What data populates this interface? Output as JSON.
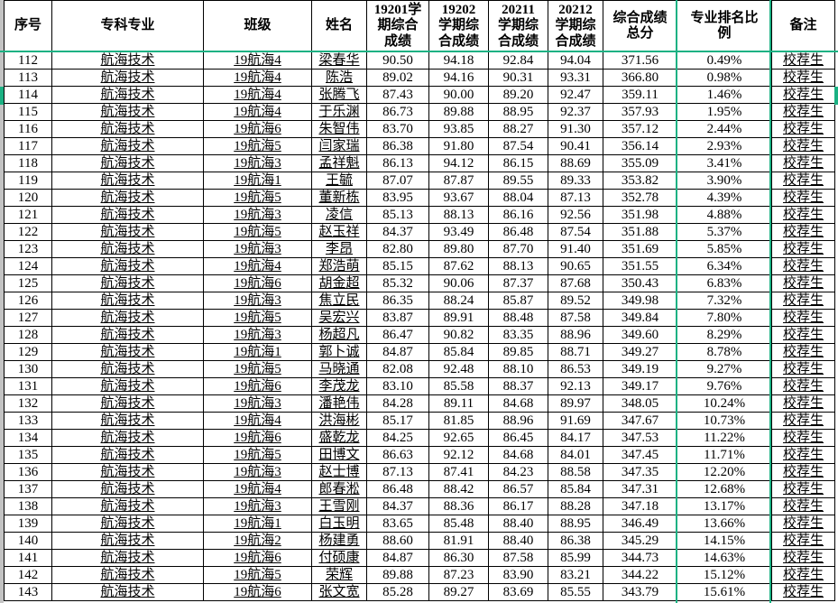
{
  "meta": {
    "accent_green": "#1bb183",
    "edge_gray": "#c3c3c3",
    "remark_value": "校荐生"
  },
  "table": {
    "columns": [
      {
        "id": "index",
        "label": "序号"
      },
      {
        "id": "major",
        "label": "专科专业"
      },
      {
        "id": "class",
        "label": "班级"
      },
      {
        "id": "name",
        "label": "姓名"
      },
      {
        "id": "s19201",
        "label": "19201学\n期综合\n成绩"
      },
      {
        "id": "s19202",
        "label": "19202\n学期综\n合成绩"
      },
      {
        "id": "s20211",
        "label": "20211\n学期综\n合成绩"
      },
      {
        "id": "s20212",
        "label": "20212\n学期综\n合成绩"
      },
      {
        "id": "total",
        "label": "综合成绩\n总分"
      },
      {
        "id": "ratio",
        "label": "专业排名比\n例"
      },
      {
        "id": "remark",
        "label": "备注"
      }
    ],
    "rows": [
      [
        "112",
        "航海技术",
        "19航海4",
        "梁春华",
        "90.50",
        "94.18",
        "92.84",
        "94.04",
        "371.56",
        "0.49%",
        "校荐生"
      ],
      [
        "113",
        "航海技术",
        "19航海4",
        "陈浩",
        "89.02",
        "94.16",
        "90.31",
        "93.31",
        "366.80",
        "0.98%",
        "校荐生"
      ],
      [
        "114",
        "航海技术",
        "19航海4",
        "张腾飞",
        "87.43",
        "90.00",
        "89.20",
        "92.47",
        "359.11",
        "1.46%",
        "校荐生"
      ],
      [
        "115",
        "航海技术",
        "19航海4",
        "于乐渊",
        "86.73",
        "89.88",
        "88.95",
        "92.37",
        "357.93",
        "1.95%",
        "校荐生"
      ],
      [
        "116",
        "航海技术",
        "19航海6",
        "朱智伟",
        "83.70",
        "93.85",
        "88.27",
        "91.30",
        "357.12",
        "2.44%",
        "校荐生"
      ],
      [
        "117",
        "航海技术",
        "19航海5",
        "闫家瑞",
        "86.38",
        "91.80",
        "87.54",
        "90.41",
        "356.14",
        "2.93%",
        "校荐生"
      ],
      [
        "118",
        "航海技术",
        "19航海3",
        "孟祥魁",
        "86.13",
        "94.12",
        "86.15",
        "88.69",
        "355.09",
        "3.41%",
        "校荐生"
      ],
      [
        "119",
        "航海技术",
        "19航海1",
        "王毓",
        "87.07",
        "87.87",
        "89.55",
        "89.33",
        "353.82",
        "3.90%",
        "校荐生"
      ],
      [
        "120",
        "航海技术",
        "19航海5",
        "董新栋",
        "83.95",
        "93.67",
        "88.04",
        "87.13",
        "352.78",
        "4.39%",
        "校荐生"
      ],
      [
        "121",
        "航海技术",
        "19航海3",
        "凌信",
        "85.13",
        "88.13",
        "86.16",
        "92.56",
        "351.98",
        "4.88%",
        "校荐生"
      ],
      [
        "122",
        "航海技术",
        "19航海5",
        "赵玉祥",
        "84.37",
        "93.49",
        "86.48",
        "87.54",
        "351.88",
        "5.37%",
        "校荐生"
      ],
      [
        "123",
        "航海技术",
        "19航海3",
        "李昂",
        "82.80",
        "89.80",
        "87.70",
        "91.40",
        "351.69",
        "5.85%",
        "校荐生"
      ],
      [
        "124",
        "航海技术",
        "19航海4",
        "郑浩萌",
        "85.15",
        "87.62",
        "88.13",
        "90.65",
        "351.55",
        "6.34%",
        "校荐生"
      ],
      [
        "125",
        "航海技术",
        "19航海6",
        "胡金超",
        "85.32",
        "90.06",
        "87.37",
        "87.68",
        "350.43",
        "6.83%",
        "校荐生"
      ],
      [
        "126",
        "航海技术",
        "19航海3",
        "焦立民",
        "86.35",
        "88.24",
        "85.87",
        "89.52",
        "349.98",
        "7.32%",
        "校荐生"
      ],
      [
        "127",
        "航海技术",
        "19航海5",
        "吴宏兴",
        "83.87",
        "89.91",
        "88.48",
        "87.58",
        "349.84",
        "7.80%",
        "校荐生"
      ],
      [
        "128",
        "航海技术",
        "19航海3",
        "杨超凡",
        "86.47",
        "90.82",
        "83.35",
        "88.96",
        "349.60",
        "8.29%",
        "校荐生"
      ],
      [
        "129",
        "航海技术",
        "19航海1",
        "郭卜诚",
        "84.87",
        "85.84",
        "89.85",
        "88.71",
        "349.27",
        "8.78%",
        "校荐生"
      ],
      [
        "130",
        "航海技术",
        "19航海5",
        "马晓通",
        "82.08",
        "92.48",
        "88.10",
        "86.53",
        "349.19",
        "9.27%",
        "校荐生"
      ],
      [
        "131",
        "航海技术",
        "19航海6",
        "李茂龙",
        "83.10",
        "85.58",
        "88.37",
        "92.13",
        "349.17",
        "9.76%",
        "校荐生"
      ],
      [
        "132",
        "航海技术",
        "19航海3",
        "潘艳伟",
        "84.28",
        "89.11",
        "84.68",
        "89.97",
        "348.05",
        "10.24%",
        "校荐生"
      ],
      [
        "133",
        "航海技术",
        "19航海4",
        "洪海彬",
        "85.17",
        "81.85",
        "88.96",
        "91.69",
        "347.67",
        "10.73%",
        "校荐生"
      ],
      [
        "134",
        "航海技术",
        "19航海6",
        "盛乾龙",
        "84.25",
        "92.65",
        "86.45",
        "84.17",
        "347.53",
        "11.22%",
        "校荐生"
      ],
      [
        "135",
        "航海技术",
        "19航海5",
        "田博文",
        "86.63",
        "92.12",
        "84.68",
        "84.01",
        "347.45",
        "11.71%",
        "校荐生"
      ],
      [
        "136",
        "航海技术",
        "19航海3",
        "赵士博",
        "87.13",
        "87.41",
        "84.23",
        "88.58",
        "347.35",
        "12.20%",
        "校荐生"
      ],
      [
        "137",
        "航海技术",
        "19航海4",
        "郎春淞",
        "86.48",
        "88.42",
        "86.57",
        "85.84",
        "347.31",
        "12.68%",
        "校荐生"
      ],
      [
        "138",
        "航海技术",
        "19航海3",
        "王雪刚",
        "84.37",
        "88.36",
        "86.17",
        "88.28",
        "347.18",
        "13.17%",
        "校荐生"
      ],
      [
        "139",
        "航海技术",
        "19航海1",
        "白玉明",
        "83.65",
        "85.48",
        "88.40",
        "88.95",
        "346.49",
        "13.66%",
        "校荐生"
      ],
      [
        "140",
        "航海技术",
        "19航海2",
        "杨建勇",
        "88.60",
        "81.91",
        "88.40",
        "86.38",
        "345.29",
        "14.15%",
        "校荐生"
      ],
      [
        "141",
        "航海技术",
        "19航海6",
        "付硕康",
        "84.87",
        "86.30",
        "87.58",
        "85.99",
        "344.73",
        "14.63%",
        "校荐生"
      ],
      [
        "142",
        "航海技术",
        "19航海5",
        "荣辉",
        "89.88",
        "87.23",
        "83.90",
        "83.21",
        "344.22",
        "15.12%",
        "校荐生"
      ],
      [
        "143",
        "航海技术",
        "19航海6",
        "张文宽",
        "85.28",
        "89.27",
        "83.69",
        "85.55",
        "343.79",
        "15.61%",
        "校荐生"
      ]
    ]
  }
}
